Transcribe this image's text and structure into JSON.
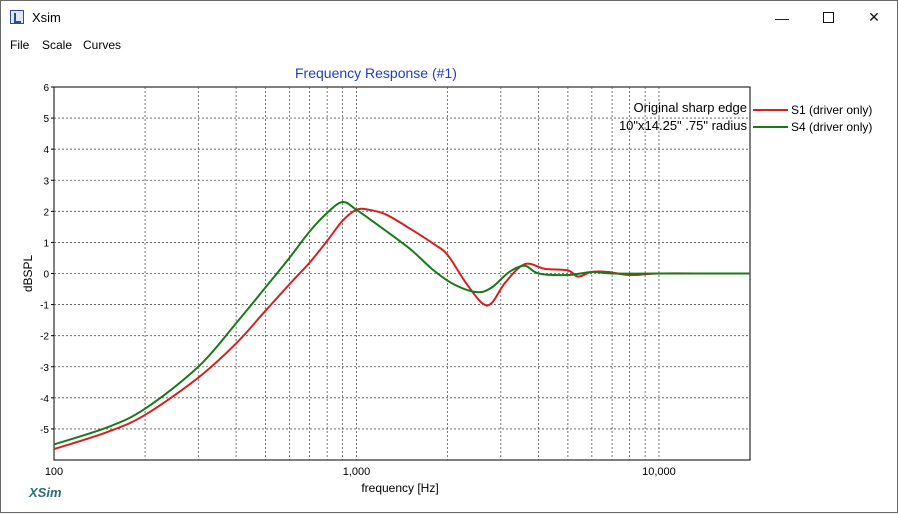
{
  "window": {
    "title": "Xsim",
    "minimize_icon": "minimize-icon",
    "maximize_icon": "maximize-icon",
    "close_icon": "close-icon"
  },
  "menu": {
    "items": [
      "File",
      "Scale",
      "Curves"
    ]
  },
  "brand": "XSim",
  "chart_data": {
    "type": "line",
    "title": "Frequency Response (#1)",
    "xlabel": "frequency [Hz]",
    "ylabel": "dBSPL",
    "x_scale": "log",
    "xlim": [
      100,
      20000
    ],
    "ylim": [
      -6,
      6
    ],
    "grid": true,
    "x_tick_labels": [
      "100",
      "1,000",
      "10,000"
    ],
    "y_tick_labels": [
      "6",
      "5",
      "4",
      "3",
      "2",
      "1",
      "0",
      "-1",
      "-2",
      "-3",
      "-4",
      "-5"
    ],
    "annotations": [
      "Original sharp edge",
      "10\"x14.25\" .75\" radius"
    ],
    "legend_position": "right",
    "series": [
      {
        "name": "S1 (driver only)",
        "color": "#d42020",
        "points": [
          [
            100,
            -5.65
          ],
          [
            150,
            -5.1
          ],
          [
            200,
            -4.55
          ],
          [
            300,
            -3.35
          ],
          [
            400,
            -2.25
          ],
          [
            500,
            -1.2
          ],
          [
            600,
            -0.35
          ],
          [
            700,
            0.35
          ],
          [
            800,
            1.05
          ],
          [
            900,
            1.7
          ],
          [
            1000,
            2.05
          ],
          [
            1100,
            2.05
          ],
          [
            1250,
            1.9
          ],
          [
            1500,
            1.45
          ],
          [
            1800,
            0.95
          ],
          [
            2000,
            0.6
          ],
          [
            2300,
            -0.3
          ],
          [
            2600,
            -0.95
          ],
          [
            2800,
            -0.95
          ],
          [
            3100,
            -0.3
          ],
          [
            3600,
            0.3
          ],
          [
            4200,
            0.15
          ],
          [
            5000,
            0.1
          ],
          [
            5400,
            -0.1
          ],
          [
            6000,
            0.05
          ],
          [
            6800,
            0.05
          ],
          [
            8000,
            -0.05
          ],
          [
            10000,
            0.0
          ],
          [
            15000,
            0.0
          ],
          [
            20000,
            0.0
          ]
        ]
      },
      {
        "name": "S4 (driver only)",
        "color": "#1a7a1a",
        "points": [
          [
            100,
            -5.5
          ],
          [
            150,
            -4.95
          ],
          [
            200,
            -4.35
          ],
          [
            300,
            -3.0
          ],
          [
            400,
            -1.6
          ],
          [
            500,
            -0.45
          ],
          [
            600,
            0.5
          ],
          [
            700,
            1.35
          ],
          [
            800,
            1.95
          ],
          [
            900,
            2.3
          ],
          [
            1000,
            2.05
          ],
          [
            1200,
            1.5
          ],
          [
            1500,
            0.8
          ],
          [
            1800,
            0.1
          ],
          [
            2100,
            -0.35
          ],
          [
            2500,
            -0.6
          ],
          [
            2800,
            -0.45
          ],
          [
            3200,
            0.05
          ],
          [
            3600,
            0.25
          ],
          [
            4000,
            0.0
          ],
          [
            5000,
            -0.05
          ],
          [
            6000,
            0.05
          ],
          [
            7000,
            0.0
          ],
          [
            10000,
            0.0
          ],
          [
            20000,
            0.0
          ]
        ]
      }
    ]
  }
}
